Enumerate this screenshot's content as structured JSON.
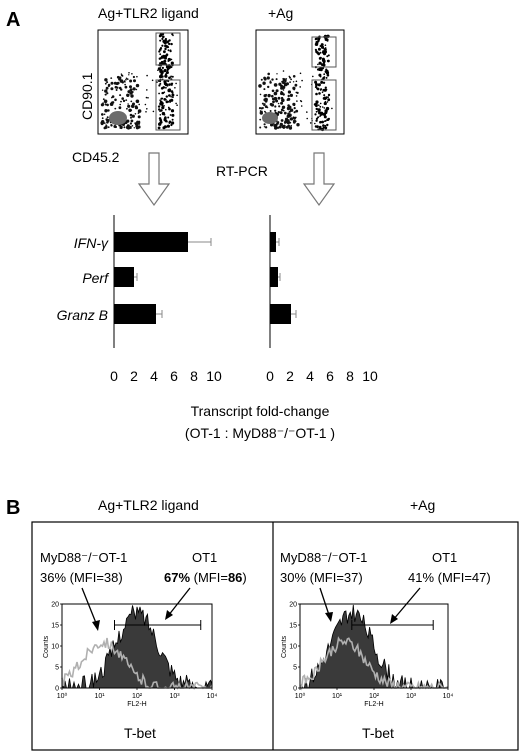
{
  "panel_a": {
    "letter": "A",
    "left_condition": "Ag+TLR2 ligand",
    "right_condition": "+Ag",
    "y_marker": "CD90.1",
    "x_marker": "CD45.2",
    "assay": "RT-PCR",
    "xlabel_line1": "Transcript fold-change",
    "xlabel_line2": "(OT-1 : MyD88⁻/⁻OT-1 )"
  },
  "panel_b": {
    "letter": "B",
    "left_title": "Ag+TLR2 ligand",
    "right_title": "+Ag",
    "ko_label": "MyD88⁻/⁻OT-1",
    "wt_label": "OT1",
    "left_ko_stat": "36% (MFI=38)",
    "left_wt_pct": "67%",
    "left_wt_mfi_prefix": " (MFI=",
    "left_wt_mfi": "86",
    "left_wt_mfi_suffix": ")",
    "right_ko_stat": "30% (MFI=37)",
    "right_wt_stat": "41% (MFI=47)",
    "y_axis": "Counts",
    "x_axis": "FL2-H",
    "marker": "T-bet",
    "hist_yticks": [
      "0",
      "5",
      "10",
      "15",
      "20"
    ],
    "hist_xticks": [
      "10⁰",
      "10¹",
      "10²",
      "10³",
      "10⁴"
    ],
    "colors": {
      "ot1_fill": "#3a3a3a",
      "ko_outline": "#b0b0b0"
    }
  },
  "chart_data": [
    {
      "type": "bar",
      "orientation": "horizontal",
      "panel": "A-left",
      "categories": [
        "IFN-γ",
        "Perf",
        "Granz B"
      ],
      "values": [
        7.4,
        2.0,
        4.2
      ],
      "errors": [
        2.3,
        0.3,
        0.6
      ],
      "xticks": [
        "0",
        "2",
        "4",
        "6",
        "8",
        "10"
      ],
      "xlim": [
        0,
        10
      ]
    },
    {
      "type": "bar",
      "orientation": "horizontal",
      "panel": "A-right",
      "categories": [
        "IFN-γ",
        "Perf",
        "Granz B"
      ],
      "values": [
        0.6,
        0.8,
        2.1
      ],
      "errors": [
        0.3,
        0.2,
        0.5
      ],
      "xticks": [
        "0",
        "2",
        "4",
        "6",
        "8",
        "10"
      ],
      "xlim": [
        0,
        10
      ]
    }
  ]
}
